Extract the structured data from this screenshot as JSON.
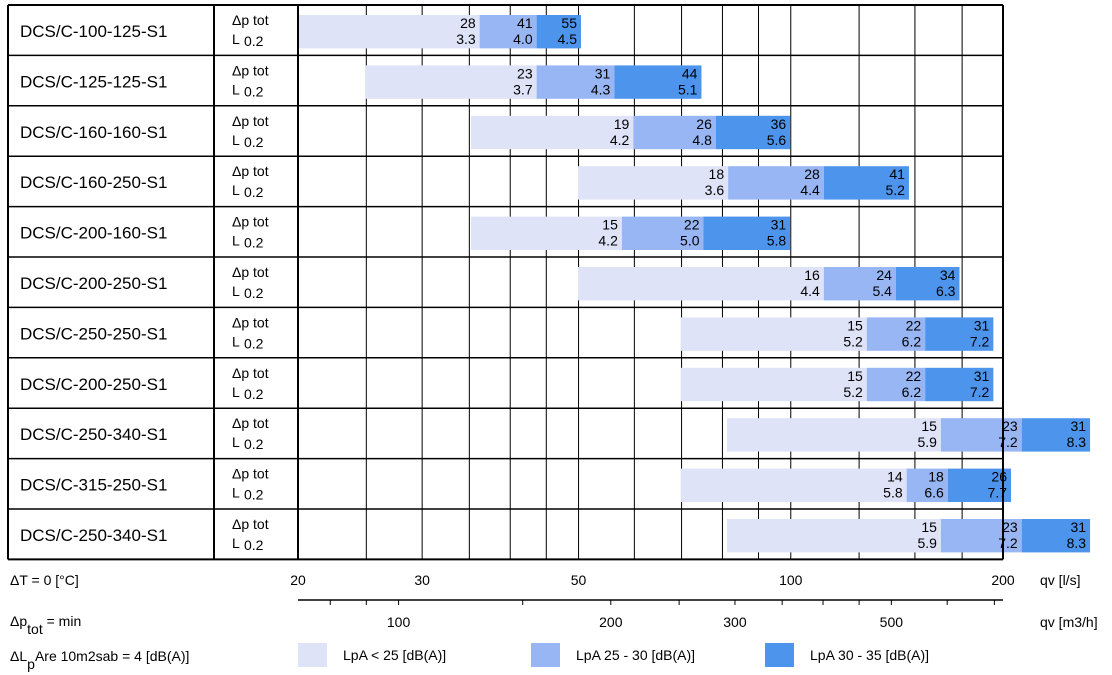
{
  "chart_data": {
    "type": "bar",
    "subtype": "range-bars",
    "x_scale": "log",
    "x_range_ls": [
      20,
      200
    ],
    "x_top_axis": {
      "unit_label": "qv [l/s]",
      "ticks": [
        20,
        30,
        50,
        100,
        200
      ]
    },
    "x_bottom_axis": {
      "unit_label": "qv [m3/h]",
      "ticks": [
        100,
        200,
        300,
        500
      ]
    },
    "row_param_labels": {
      "line1": "Δp tot",
      "line2_main": "L",
      "line2_sub": "0.2"
    },
    "segment_colors": [
      "#dfe3f8",
      "#98b6f3",
      "#4d95ec"
    ],
    "rows": [
      {
        "name": "DCS/C-100-125-S1",
        "ranges_ls": [
          [
            20,
            36.2
          ],
          [
            36.2,
            43.6
          ],
          [
            43.6,
            50.4
          ]
        ],
        "dp_tot": [
          28,
          41,
          55
        ],
        "L": [
          3.3,
          4.0,
          4.5
        ]
      },
      {
        "name": "DCS/C-125-125-S1",
        "ranges_ls": [
          [
            24.9,
            43.6
          ],
          [
            43.6,
            56.2
          ],
          [
            56.2,
            74.7
          ]
        ],
        "dp_tot": [
          23,
          31,
          44
        ],
        "L": [
          3.7,
          4.3,
          5.1
        ]
      },
      {
        "name": "DCS/C-160-160-S1",
        "ranges_ls": [
          [
            35.2,
            59.8
          ],
          [
            59.8,
            78.3
          ],
          [
            78.3,
            99.8
          ]
        ],
        "dp_tot": [
          19,
          26,
          36
        ],
        "L": [
          4.2,
          4.8,
          5.6
        ]
      },
      {
        "name": "DCS/C-160-250-S1",
        "ranges_ls": [
          [
            49.9,
            81.5
          ],
          [
            81.5,
            111.4
          ],
          [
            111.4,
            147.1
          ]
        ],
        "dp_tot": [
          18,
          28,
          41
        ],
        "L": [
          3.6,
          4.4,
          5.2
        ]
      },
      {
        "name": "DCS/C-200-160-S1",
        "ranges_ls": [
          [
            35.2,
            57.6
          ],
          [
            57.6,
            75.2
          ],
          [
            75.2,
            99.8
          ]
        ],
        "dp_tot": [
          15,
          22,
          31
        ],
        "L": [
          4.2,
          5.0,
          5.8
        ]
      },
      {
        "name": "DCS/C-200-250-S1",
        "ranges_ls": [
          [
            49.9,
            111.4
          ],
          [
            111.4,
            141.0
          ],
          [
            141.0,
            173.5
          ]
        ],
        "dp_tot": [
          16,
          24,
          34
        ],
        "L": [
          4.4,
          5.4,
          6.3
        ]
      },
      {
        "name": "DCS/C-250-250-S1",
        "ranges_ls": [
          [
            69.8,
            128.2
          ],
          [
            128.2,
            155.1
          ],
          [
            155.1,
            193.8
          ]
        ],
        "dp_tot": [
          15,
          22,
          31
        ],
        "L": [
          5.2,
          6.2,
          7.2
        ]
      },
      {
        "name": "DCS/C-200-250-S1",
        "ranges_ls": [
          [
            69.8,
            128.2
          ],
          [
            128.2,
            155.1
          ],
          [
            155.1,
            193.8
          ]
        ],
        "dp_tot": [
          15,
          22,
          31
        ],
        "L": [
          5.2,
          6.2,
          7.2
        ]
      },
      {
        "name": "DCS/C-250-340-S1",
        "ranges_ls": [
          [
            81.2,
            163.3
          ],
          [
            163.3,
            212.6
          ],
          [
            212.6,
            265.8
          ]
        ],
        "dp_tot": [
          15,
          23,
          31
        ],
        "L": [
          5.9,
          7.2,
          8.3
        ]
      },
      {
        "name": "DCS/C-315-250-S1",
        "ranges_ls": [
          [
            69.8,
            146.0
          ],
          [
            146.0,
            167.0
          ],
          [
            167.0,
            205.3
          ]
        ],
        "dp_tot": [
          14,
          18,
          26
        ],
        "L": [
          5.8,
          6.6,
          7.7
        ]
      },
      {
        "name": "DCS/C-250-340-S1",
        "ranges_ls": [
          [
            81.2,
            163.3
          ],
          [
            163.3,
            212.6
          ],
          [
            212.6,
            265.8
          ]
        ],
        "dp_tot": [
          15,
          23,
          31
        ],
        "L": [
          5.9,
          7.2,
          8.3
        ]
      }
    ]
  },
  "footer": {
    "dt": "ΔT = 0 [°C]",
    "dp_main": "Δp",
    "dp_sub": "tot",
    "dp_tail": " = min",
    "dl_main": "ΔL",
    "dl_sub": "p",
    "dl_tail": "Are 10m2sab = 4 [dB(A)]"
  },
  "legend": [
    {
      "label": "LpA < 25 [dB(A)]",
      "color": "#dfe3f8"
    },
    {
      "label": "LpA 25 - 30 [dB(A)]",
      "color": "#98b6f3"
    },
    {
      "label": "LpA 30 - 35 [dB(A)]",
      "color": "#4d95ec"
    }
  ]
}
